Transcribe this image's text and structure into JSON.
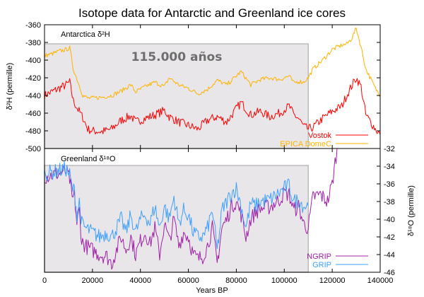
{
  "chart_data": {
    "type": "line",
    "title": "Isotope data for Antarctic and Greenland ice cores",
    "xlabel": "Years BP",
    "xlim": [
      0,
      140000
    ],
    "x_ticks": [
      0,
      20000,
      40000,
      60000,
      80000,
      100000,
      120000,
      140000
    ],
    "x_tick_labels": [
      "0",
      "20000",
      "40000",
      "60000",
      "80000",
      "100000",
      "120000",
      "140000"
    ],
    "annotation": {
      "text": "115.000 años",
      "shaded_range_years": [
        0,
        110000
      ],
      "shade_color": "#e8e6e8"
    },
    "panels": [
      {
        "name": "antarctica",
        "panel_label": "Antarctica δ²H",
        "ylabel": "δ²H (permille)",
        "ylim": [
          -500,
          -360
        ],
        "y_axis_side": "left",
        "y_ticks": [
          -360,
          -380,
          -400,
          -420,
          -440,
          -460,
          -480,
          -500
        ],
        "y_tick_labels": [
          "-360",
          "-380",
          "-400",
          "-420",
          "-440",
          "-460",
          "-480",
          "-500"
        ],
        "legend_position": "bottom-right",
        "series": [
          {
            "name": "Vostok",
            "color": "#ff0000",
            "x": [
              0,
              3000,
              6000,
              9000,
              10500,
              12000,
              14000,
              16000,
              18000,
              20000,
              24000,
              28000,
              32000,
              36000,
              38000,
              42000,
              46000,
              50000,
              52000,
              56000,
              60000,
              64000,
              68000,
              72000,
              76000,
              80000,
              82000,
              86000,
              90000,
              94000,
              98000,
              102000,
              104000,
              106000,
              108000,
              110000,
              112000,
              116000,
              120000,
              124000,
              126000,
              128000,
              130000,
              132000,
              134000,
              138000,
              140000
            ],
            "y": [
              -440,
              -436,
              -432,
              -428,
              -425,
              -446,
              -456,
              -465,
              -478,
              -480,
              -481,
              -478,
              -468,
              -463,
              -470,
              -466,
              -462,
              -457,
              -464,
              -470,
              -474,
              -478,
              -468,
              -464,
              -470,
              -455,
              -448,
              -462,
              -458,
              -464,
              -460,
              -452,
              -462,
              -466,
              -475,
              -478,
              -476,
              -466,
              -458,
              -452,
              -440,
              -430,
              -420,
              -430,
              -462,
              -478,
              -484
            ]
          },
          {
            "name": "EPICA DomeC",
            "color": "#ffb300",
            "x": [
              0,
              3000,
              6000,
              9000,
              10500,
              12000,
              14000,
              16000,
              18000,
              20000,
              24000,
              28000,
              32000,
              36000,
              38000,
              42000,
              46000,
              50000,
              52000,
              56000,
              60000,
              64000,
              68000,
              72000,
              76000,
              80000,
              82000,
              86000,
              90000,
              94000,
              98000,
              102000,
              104000,
              106000,
              108000,
              110000,
              112000,
              116000,
              120000,
              124000,
              126000,
              128000,
              130000,
              132000,
              134000,
              138000,
              140000
            ],
            "y": [
              -395,
              -393,
              -390,
              -388,
              -386,
              -410,
              -425,
              -440,
              -443,
              -443,
              -442,
              -440,
              -435,
              -428,
              -436,
              -430,
              -425,
              -430,
              -420,
              -428,
              -432,
              -438,
              -433,
              -423,
              -428,
              -418,
              -413,
              -428,
              -422,
              -420,
              -422,
              -418,
              -426,
              -424,
              -425,
              -420,
              -410,
              -400,
              -388,
              -383,
              -382,
              -376,
              -364,
              -385,
              -410,
              -432,
              -440
            ]
          }
        ]
      },
      {
        "name": "greenland",
        "panel_label": "Greenland δ¹⁸O",
        "ylabel": "δ¹⁸O (permille)",
        "ylim": [
          -46,
          -32
        ],
        "y_axis_side": "right",
        "y_ticks": [
          -32,
          -34,
          -36,
          -38,
          -40,
          -42,
          -44,
          -46
        ],
        "y_tick_labels": [
          "-32",
          "-34",
          "-36",
          "-38",
          "-40",
          "-42",
          "-44",
          "-46"
        ],
        "legend_position": "bottom-right",
        "series": [
          {
            "name": "NGRIP",
            "color": "#a020a8",
            "x": [
              0,
              3000,
              6000,
              9000,
              10500,
              11500,
              12500,
              13500,
              14500,
              15500,
              17000,
              20000,
              23000,
              26000,
              28000,
              30000,
              32000,
              34000,
              36000,
              38000,
              40000,
              42000,
              44000,
              46000,
              48000,
              50000,
              52000,
              54000,
              56000,
              58000,
              60000,
              62000,
              64000,
              66000,
              68000,
              70000,
              72000,
              73000,
              74000,
              76000,
              78000,
              80000,
              82000,
              84000,
              86000,
              88000,
              90000,
              94000,
              98000,
              100000,
              102000,
              104000,
              106000,
              108000,
              110000,
              112000,
              115000,
              118000,
              120000,
              122000
            ],
            "y": [
              -35.2,
              -35.0,
              -34.8,
              -34.6,
              -35.5,
              -37.8,
              -37.3,
              -40.5,
              -39.0,
              -42.5,
              -43.0,
              -43.5,
              -44.0,
              -44.2,
              -45.0,
              -43.5,
              -42.0,
              -43.5,
              -42.0,
              -44.0,
              -42.5,
              -41.5,
              -42.8,
              -41.0,
              -44.0,
              -40.5,
              -42.5,
              -40.0,
              -43.0,
              -41.5,
              -42.0,
              -44.0,
              -44.5,
              -44.2,
              -43.0,
              -41.0,
              -45.0,
              -43.0,
              -41.0,
              -40.0,
              -38.5,
              -38.0,
              -39.5,
              -42.0,
              -40.0,
              -39.2,
              -38.8,
              -38.6,
              -37.8,
              -37.0,
              -37.2,
              -39.0,
              -38.5,
              -40.5,
              -41.0,
              -37.5,
              -37.2,
              -38.0,
              -36.0,
              -32.0
            ]
          },
          {
            "name": "GRIP",
            "color": "#3fa0ff",
            "x": [
              0,
              3000,
              6000,
              9000,
              10500,
              11500,
              12500,
              13500,
              14500,
              15500,
              17000,
              20000,
              23000,
              26000,
              28000,
              30000,
              32000,
              34000,
              36000,
              38000,
              40000,
              42000,
              44000,
              46000,
              48000,
              50000,
              52000,
              54000,
              56000,
              58000,
              60000,
              62000,
              64000,
              66000,
              68000,
              70000,
              72000,
              73000,
              74000,
              76000,
              78000,
              80000,
              82000,
              84000,
              86000,
              88000,
              90000,
              94000,
              98000,
              100000,
              102000,
              104000,
              106000,
              108000,
              110000
            ],
            "y": [
              -34.8,
              -34.7,
              -34.5,
              -34.3,
              -35.0,
              -36.5,
              -36.8,
              -39.5,
              -38.0,
              -40.5,
              -41.0,
              -41.5,
              -42.0,
              -41.5,
              -42.0,
              -41.0,
              -40.0,
              -41.5,
              -39.5,
              -41.5,
              -40.0,
              -39.5,
              -40.5,
              -38.5,
              -41.0,
              -38.5,
              -40.0,
              -37.5,
              -40.5,
              -39.0,
              -39.5,
              -41.5,
              -42.0,
              -42.0,
              -41.0,
              -39.0,
              -43.5,
              -41.5,
              -39.0,
              -38.0,
              -37.0,
              -36.5,
              -38.5,
              -41.0,
              -38.2,
              -38.5,
              -38.0,
              -37.8,
              -37.0,
              -36.5,
              -36.2,
              -38.0,
              -37.8,
              -38.5,
              -38.5
            ]
          }
        ]
      }
    ]
  }
}
